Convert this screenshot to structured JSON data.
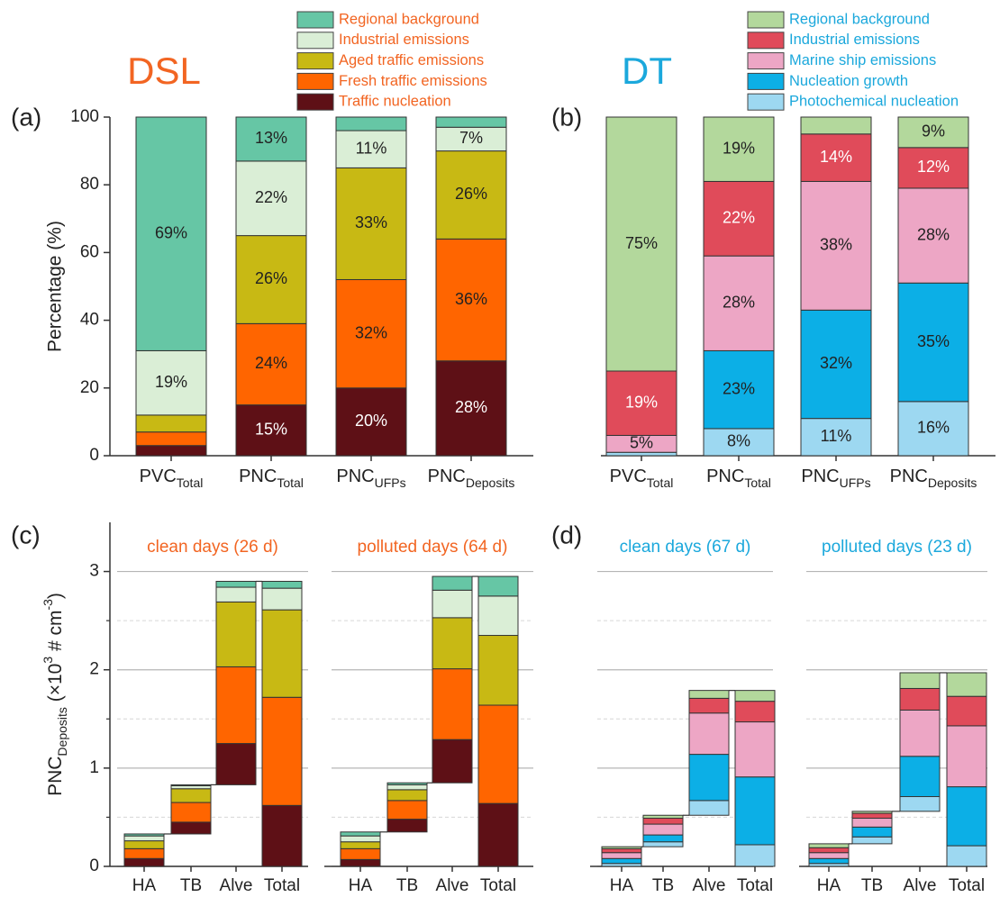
{
  "chart_data": [
    {
      "type": "stacked_bar",
      "panel_label": "(a)",
      "title": "DSL",
      "title_color": "#f26522",
      "legend_text_color": "#f26522",
      "ylabel": "Percentage (%)",
      "ylim": [
        0,
        100
      ],
      "yticks": [
        0,
        20,
        40,
        60,
        80,
        100
      ],
      "categories": [
        {
          "text": "PVC",
          "sub": "Total"
        },
        {
          "text": "PNC",
          "sub": "Total"
        },
        {
          "text": "PNC",
          "sub": "UFPs"
        },
        {
          "text": "PNC",
          "sub": "Deposits"
        }
      ],
      "series": [
        {
          "name": "Regional background",
          "color": "#66c6a5",
          "label_color": "#222",
          "values": [
            69,
            13,
            4,
            3
          ],
          "value_labels": [
            "69%",
            "13%",
            null,
            null
          ]
        },
        {
          "name": "Industrial emissions",
          "color": "#daeed6",
          "label_color": "#222",
          "values": [
            19,
            22,
            11,
            7
          ],
          "value_labels": [
            "19%",
            "22%",
            "11%",
            "7%"
          ]
        },
        {
          "name": "Aged traffic emissions",
          "color": "#c8b914",
          "label_color": "#222",
          "values": [
            5,
            26,
            33,
            26
          ],
          "value_labels": [
            null,
            "26%",
            "33%",
            "26%"
          ]
        },
        {
          "name": "Fresh traffic emissions",
          "color": "#ff6500",
          "label_color": "#222",
          "values": [
            4,
            24,
            32,
            36
          ],
          "value_labels": [
            null,
            "24%",
            "32%",
            "36%"
          ]
        },
        {
          "name": "Traffic nucleation",
          "color": "#5e1016",
          "label_color": "#fff",
          "values": [
            3,
            15,
            20,
            28
          ],
          "value_labels": [
            null,
            "15%",
            "20%",
            "28%"
          ]
        }
      ]
    },
    {
      "type": "stacked_bar",
      "panel_label": "(b)",
      "title": "DT",
      "title_color": "#1ba8dc",
      "legend_text_color": "#1ba8dc",
      "ylim": [
        0,
        100
      ],
      "categories": [
        {
          "text": "PVC",
          "sub": "Total"
        },
        {
          "text": "PNC",
          "sub": "Total"
        },
        {
          "text": "PNC",
          "sub": "UFPs"
        },
        {
          "text": "PNC",
          "sub": "Deposits"
        }
      ],
      "series": [
        {
          "name": "Regional background",
          "color": "#b3d89c",
          "label_color": "#222",
          "values": [
            75,
            19,
            5,
            9
          ],
          "value_labels": [
            "75%",
            "19%",
            null,
            "9%"
          ]
        },
        {
          "name": "Industrial emissions",
          "color": "#e04b5a",
          "label_color": "#fff",
          "values": [
            19,
            22,
            14,
            12
          ],
          "value_labels": [
            "19%",
            "22%",
            "14%",
            "12%"
          ]
        },
        {
          "name": "Marine ship emissions",
          "color": "#eda6c5",
          "label_color": "#222",
          "values": [
            5,
            28,
            38,
            28
          ],
          "value_labels": [
            "5%",
            "28%",
            "38%",
            "28%"
          ]
        },
        {
          "name": "Nucleation growth",
          "color": "#0cafe6",
          "label_color": "#222",
          "values": [
            0,
            23,
            32,
            35
          ],
          "value_labels": [
            null,
            "23%",
            "32%",
            "35%"
          ]
        },
        {
          "name": "Photochemical nucleation",
          "color": "#9dd8f1",
          "label_color": "#222",
          "values": [
            1,
            8,
            11,
            16
          ],
          "value_labels": [
            null,
            "8%",
            "11%",
            "16%"
          ]
        }
      ]
    },
    {
      "type": "waterfall",
      "panel_label": "(c)",
      "subtitle_color": "#f26522",
      "ylabel": {
        "parts": [
          "PNC",
          "Deposits",
          " (×10",
          "3",
          " # cm",
          "-3",
          ")"
        ],
        "styles": [
          "normal",
          "sub",
          "normal",
          "super",
          "normal",
          "super",
          "normal"
        ]
      },
      "ylim": [
        0,
        3.5
      ],
      "yticks": [
        0,
        1,
        2,
        3
      ],
      "minor_yticks": [
        0.5,
        1.5,
        2.5
      ],
      "show_tick_labels": true,
      "categories": [
        "HA",
        "TB",
        "Alve",
        "Total"
      ],
      "panels": [
        {
          "title": "clean days (26 d)",
          "series": [
            {
              "color": "#66c6a5",
              "values": [
                0.02,
                0.01,
                0.06,
                0.07
              ]
            },
            {
              "color": "#daeed6",
              "values": [
                0.05,
                0.03,
                0.15,
                0.22
              ]
            },
            {
              "color": "#c8b914",
              "values": [
                0.08,
                0.14,
                0.66,
                0.89
              ]
            },
            {
              "color": "#ff6500",
              "values": [
                0.1,
                0.2,
                0.78,
                1.1
              ]
            },
            {
              "color": "#5e1016",
              "values": [
                0.08,
                0.12,
                0.42,
                0.62
              ]
            }
          ]
        },
        {
          "title": "polluted days (64 d)",
          "series": [
            {
              "color": "#66c6a5",
              "values": [
                0.04,
                0.02,
                0.14,
                0.2
              ]
            },
            {
              "color": "#daeed6",
              "values": [
                0.06,
                0.05,
                0.28,
                0.4
              ]
            },
            {
              "color": "#c8b914",
              "values": [
                0.07,
                0.11,
                0.52,
                0.71
              ]
            },
            {
              "color": "#ff6500",
              "values": [
                0.11,
                0.19,
                0.72,
                1.0
              ]
            },
            {
              "color": "#5e1016",
              "values": [
                0.07,
                0.13,
                0.44,
                0.64
              ]
            }
          ]
        }
      ]
    },
    {
      "type": "waterfall",
      "panel_label": "(d)",
      "subtitle_color": "#1ba8dc",
      "ylim": [
        0,
        3.5
      ],
      "yticks": [
        0,
        1,
        2,
        3
      ],
      "minor_yticks": [
        0.5,
        1.5,
        2.5
      ],
      "show_tick_labels": false,
      "categories": [
        "HA",
        "TB",
        "Alve",
        "Total"
      ],
      "panels": [
        {
          "title": "clean days (67 d)",
          "series": [
            {
              "color": "#b3d89c",
              "values": [
                0.02,
                0.03,
                0.08,
                0.11
              ]
            },
            {
              "color": "#e04b5a",
              "values": [
                0.04,
                0.06,
                0.15,
                0.21
              ]
            },
            {
              "color": "#eda6c5",
              "values": [
                0.06,
                0.11,
                0.42,
                0.56
              ]
            },
            {
              "color": "#0cafe6",
              "values": [
                0.05,
                0.07,
                0.47,
                0.69
              ]
            },
            {
              "color": "#9dd8f1",
              "values": [
                0.03,
                0.05,
                0.15,
                0.22
              ]
            }
          ]
        },
        {
          "title": "polluted days (23 d)",
          "series": [
            {
              "color": "#b3d89c",
              "values": [
                0.04,
                0.02,
                0.16,
                0.24
              ]
            },
            {
              "color": "#e04b5a",
              "values": [
                0.05,
                0.05,
                0.22,
                0.3
              ]
            },
            {
              "color": "#eda6c5",
              "values": [
                0.06,
                0.09,
                0.47,
                0.62
              ]
            },
            {
              "color": "#0cafe6",
              "values": [
                0.05,
                0.1,
                0.41,
                0.6
              ]
            },
            {
              "color": "#9dd8f1",
              "values": [
                0.03,
                0.07,
                0.15,
                0.21
              ]
            }
          ]
        }
      ]
    }
  ]
}
